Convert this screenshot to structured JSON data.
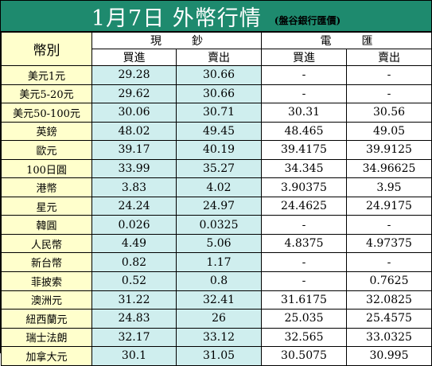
{
  "title": "1月7日 外幣行情",
  "source": "(盤谷銀行匯價)",
  "headers": {
    "currency": "幣別",
    "cash": "現鈔",
    "wire": "電匯",
    "buy": "買進",
    "sell": "賣出"
  },
  "rows": [
    {
      "currency": "美元1元",
      "cash_buy": "29.28",
      "cash_sell": "30.66",
      "wire_buy": "-",
      "wire_sell": "-"
    },
    {
      "currency": "美元5-20元",
      "cash_buy": "29.62",
      "cash_sell": "30.66",
      "wire_buy": "-",
      "wire_sell": "-"
    },
    {
      "currency": "美元50-100元",
      "cash_buy": "30.06",
      "cash_sell": "30.71",
      "wire_buy": "30.31",
      "wire_sell": "30.56"
    },
    {
      "currency": "英鎊",
      "cash_buy": "48.02",
      "cash_sell": "49.45",
      "wire_buy": "48.465",
      "wire_sell": "49.05"
    },
    {
      "currency": "歐元",
      "cash_buy": "39.17",
      "cash_sell": "40.19",
      "wire_buy": "39.4175",
      "wire_sell": "39.9125"
    },
    {
      "currency": "100日圓",
      "cash_buy": "33.99",
      "cash_sell": "35.27",
      "wire_buy": "34.345",
      "wire_sell": "34.96625"
    },
    {
      "currency": "港幣",
      "cash_buy": "3.83",
      "cash_sell": "4.02",
      "wire_buy": "3.90375",
      "wire_sell": "3.95"
    },
    {
      "currency": "星元",
      "cash_buy": "24.24",
      "cash_sell": "24.97",
      "wire_buy": "24.4625",
      "wire_sell": "24.9175"
    },
    {
      "currency": "韓圓",
      "cash_buy": "0.026",
      "cash_sell": "0.0325",
      "wire_buy": "-",
      "wire_sell": "-"
    },
    {
      "currency": "人民幣",
      "cash_buy": "4.49",
      "cash_sell": "5.06",
      "wire_buy": "4.8375",
      "wire_sell": "4.97375"
    },
    {
      "currency": "新台幣",
      "cash_buy": "0.82",
      "cash_sell": "1.17",
      "wire_buy": "-",
      "wire_sell": "-"
    },
    {
      "currency": "菲披索",
      "cash_buy": "0.52",
      "cash_sell": "0.8",
      "wire_buy": "-",
      "wire_sell": "0.7625"
    },
    {
      "currency": "澳洲元",
      "cash_buy": "31.22",
      "cash_sell": "32.41",
      "wire_buy": "31.6175",
      "wire_sell": "32.0825"
    },
    {
      "currency": "紐西蘭元",
      "cash_buy": "24.83",
      "cash_sell": "26",
      "wire_buy": "25.035",
      "wire_sell": "25.4575"
    },
    {
      "currency": "瑞士法朗",
      "cash_buy": "32.17",
      "cash_sell": "33.12",
      "wire_buy": "32.565",
      "wire_sell": "33.0325"
    },
    {
      "currency": "加拿大元",
      "cash_buy": "30.1",
      "cash_sell": "31.05",
      "wire_buy": "30.5075",
      "wire_sell": "30.995"
    }
  ]
}
